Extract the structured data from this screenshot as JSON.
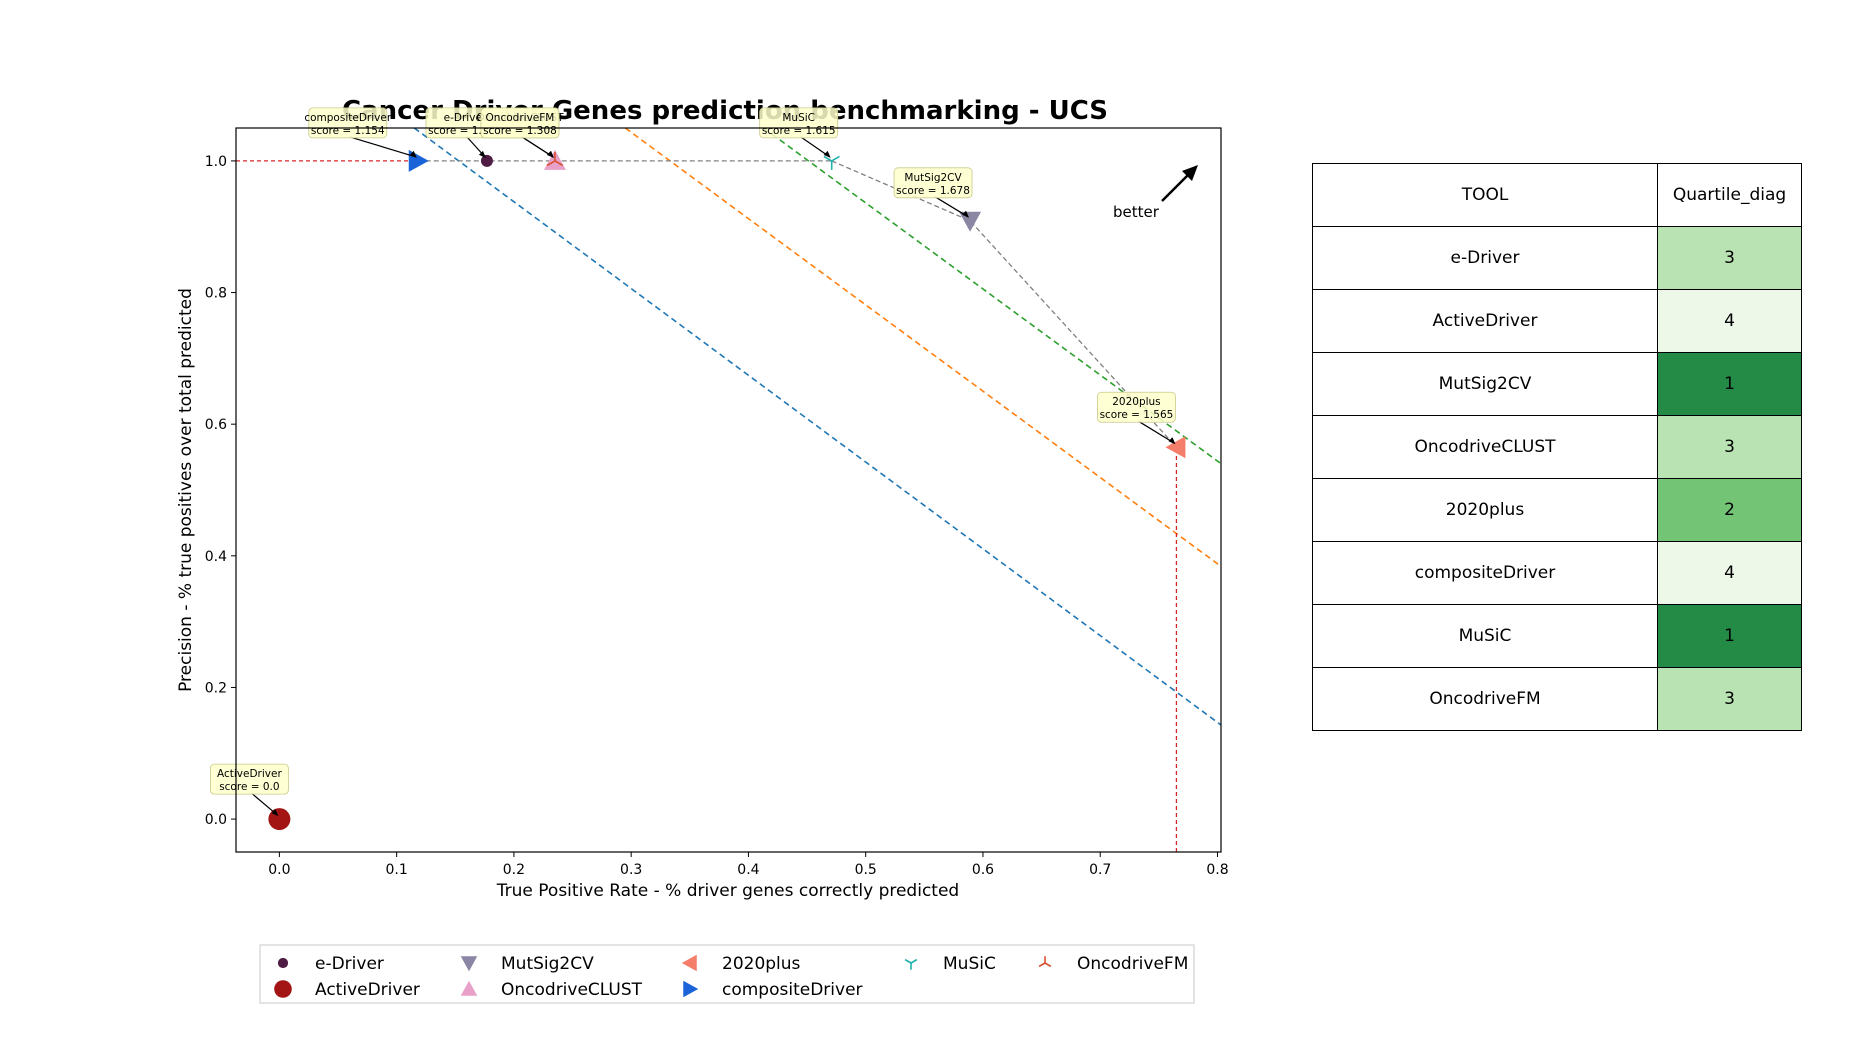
{
  "chart_data": {
    "type": "scatter",
    "title": "Cancer Driver Genes prediction benchmarking - UCS",
    "xlabel": "True Positive Rate - % driver genes correctly predicted",
    "ylabel": "Precision - % true positives over total predicted",
    "xlim": [
      -0.037,
      0.803
    ],
    "ylim": [
      -0.05,
      1.05
    ],
    "xticks": [
      "0.0",
      "0.1",
      "0.2",
      "0.3",
      "0.4",
      "0.5",
      "0.6",
      "0.7",
      "0.8"
    ],
    "yticks": [
      "0.0",
      "0.2",
      "0.4",
      "0.6",
      "0.8",
      "1.0"
    ],
    "grid": false,
    "legend_position": "bottom",
    "better_label": "better",
    "series": [
      {
        "name": "e-Driver",
        "x": 0.177,
        "y": 1.0,
        "score_label": "score = 1.231",
        "color": "#4f1d44",
        "marker": "circle-small"
      },
      {
        "name": "ActiveDriver",
        "x": 0.0,
        "y": 0.0,
        "score_label": "score = 0.0",
        "color": "#a31515",
        "marker": "circle-large"
      },
      {
        "name": "MutSig2CV",
        "x": 0.589,
        "y": 0.909,
        "score_label": "score = 1.678",
        "color": "#8a86a3",
        "marker": "triangle-down"
      },
      {
        "name": "OncodriveCLUST",
        "x": 0.235,
        "y": 1.0,
        "score_label": "score = 1.308",
        "color": "#e8a0c8",
        "marker": "triangle-up"
      },
      {
        "name": "2020plus",
        "x": 0.765,
        "y": 0.565,
        "score_label": "score = 1.565",
        "color": "#f47e6a",
        "marker": "triangle-left"
      },
      {
        "name": "compositeDriver",
        "x": 0.118,
        "y": 1.0,
        "score_label": "score = 1.154",
        "color": "#1a63d8",
        "marker": "triangle-right"
      },
      {
        "name": "MuSiC",
        "x": 0.471,
        "y": 1.0,
        "score_label": "score = 1.615",
        "color": "#20b2aa",
        "marker": "tri-down"
      },
      {
        "name": "OncodriveFM",
        "x": 0.235,
        "y": 1.0,
        "score_label": "score = 1.308",
        "color": "#d9502f",
        "marker": "tri-up"
      }
    ],
    "pareto_frontier": [
      [
        0.471,
        1.0
      ],
      [
        0.589,
        0.909
      ],
      [
        0.765,
        0.565
      ]
    ],
    "quartile_lines": [
      {
        "color": "#1f77b4",
        "points": [
          [
            0.115,
            1.05
          ],
          [
            0.803,
            0.143
          ]
        ]
      },
      {
        "color": "#ff7f0e",
        "points": [
          [
            0.295,
            1.05
          ],
          [
            0.803,
            0.384
          ]
        ]
      },
      {
        "color": "#2ca02c",
        "points": [
          [
            0.413,
            1.05
          ],
          [
            0.803,
            0.54
          ]
        ]
      }
    ],
    "guide_lines": [
      {
        "color": "#d62728",
        "points": [
          [
            -0.037,
            1.0
          ],
          [
            0.118,
            1.0
          ]
        ]
      },
      {
        "color": "#d62728",
        "points": [
          [
            0.765,
            -0.05
          ],
          [
            0.765,
            0.565
          ]
        ]
      }
    ]
  },
  "table": {
    "headers": [
      "TOOL",
      "Quartile_diag"
    ],
    "rows": [
      {
        "tool": "e-Driver",
        "quartile": "3",
        "color": "#b9e3b2"
      },
      {
        "tool": "ActiveDriver",
        "quartile": "4",
        "color": "#edf8e9"
      },
      {
        "tool": "MutSig2CV",
        "quartile": "1",
        "color": "#238b45"
      },
      {
        "tool": "OncodriveCLUST",
        "quartile": "3",
        "color": "#b9e3b2"
      },
      {
        "tool": "2020plus",
        "quartile": "2",
        "color": "#74c476"
      },
      {
        "tool": "compositeDriver",
        "quartile": "4",
        "color": "#edf8e9"
      },
      {
        "tool": "MuSiC",
        "quartile": "1",
        "color": "#238b45"
      },
      {
        "tool": "OncodriveFM",
        "quartile": "3",
        "color": "#b9e3b2"
      }
    ]
  }
}
